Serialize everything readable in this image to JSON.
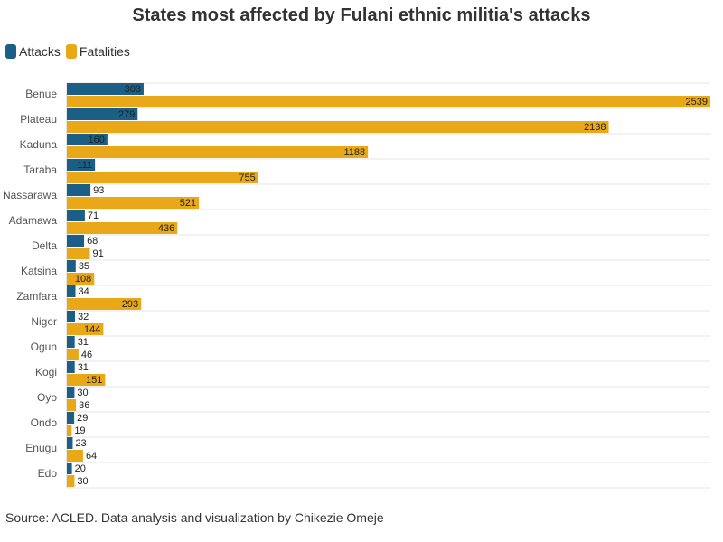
{
  "colors": {
    "attacks": "#1b5f86",
    "fatalities": "#e8a817",
    "text": "#333333",
    "label_text": "#222222",
    "grid": "#e5e5e5"
  },
  "legend": {
    "attacks_label": "Attacks",
    "fatalities_label": "Fatalities"
  },
  "source": "Source: ACLED. Data analysis and visualization by Chikezie Omeje",
  "chart_data": {
    "type": "bar",
    "orientation": "horizontal",
    "title": "States most affected by Fulani ethnic militia's attacks",
    "xlabel": "",
    "ylabel": "",
    "xlim": [
      0,
      2539
    ],
    "grid": true,
    "legend_position": "top-left",
    "categories": [
      "Benue",
      "Plateau",
      "Kaduna",
      "Taraba",
      "Nassarawa",
      "Adamawa",
      "Delta",
      "Katsina",
      "Zamfara",
      "Niger",
      "Ogun",
      "Kogi",
      "Oyo",
      "Ondo",
      "Enugu",
      "Edo"
    ],
    "series": [
      {
        "name": "Attacks",
        "values": [
          303,
          279,
          160,
          111,
          93,
          71,
          68,
          35,
          34,
          32,
          31,
          31,
          30,
          29,
          23,
          20
        ]
      },
      {
        "name": "Fatalities",
        "values": [
          2539,
          2138,
          1188,
          755,
          521,
          436,
          91,
          108,
          293,
          144,
          46,
          151,
          36,
          19,
          64,
          30
        ]
      }
    ]
  }
}
